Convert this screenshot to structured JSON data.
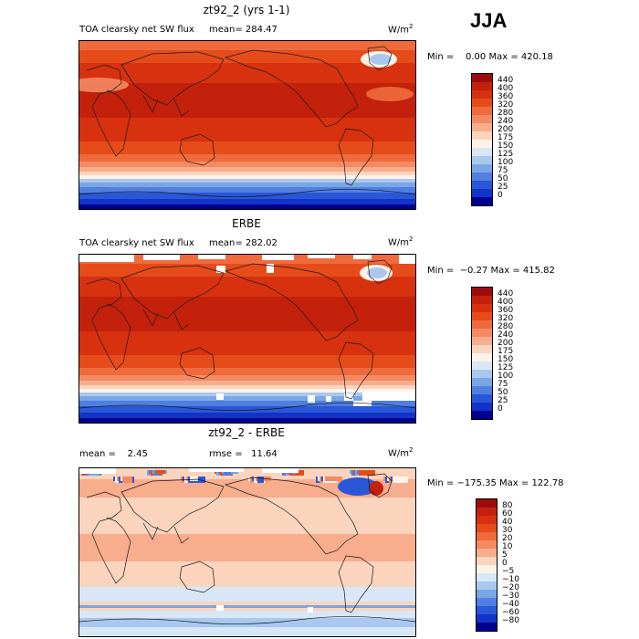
{
  "season": "JJA",
  "panels": [
    {
      "id": "model",
      "title": "zt92_2 (yrs 1-1)",
      "left_label": "TOA clearsky net SW flux",
      "stat_text": "mean= 284.47",
      "units_base": "W/m",
      "units_exp": "2",
      "minmax": "Min =    0.00 Max = 420.18",
      "colorbar": {
        "labels": [
          "440",
          "400",
          "360",
          "320",
          "280",
          "240",
          "200",
          "175",
          "150",
          "125",
          "100",
          "75",
          "50",
          "25",
          "0"
        ],
        "colors": [
          "#9b0d0d",
          "#c3210c",
          "#d8310f",
          "#e64b1a",
          "#ef6a3c",
          "#f48a62",
          "#f8ad8d",
          "#fbd4be",
          "#fdf2e8",
          "#d8e7f6",
          "#aac8ee",
          "#7aa6e6",
          "#4f7fe0",
          "#2a57d8",
          "#1233c8",
          "#000090"
        ]
      }
    },
    {
      "id": "obs",
      "title": "ERBE",
      "left_label": "TOA clearsky net SW flux",
      "stat_text": "mean= 282.02",
      "units_base": "W/m",
      "units_exp": "2",
      "minmax": "Min =  −0.27 Max = 415.82",
      "colorbar": {
        "labels": [
          "440",
          "400",
          "360",
          "320",
          "280",
          "240",
          "200",
          "175",
          "150",
          "125",
          "100",
          "75",
          "50",
          "25",
          "0"
        ],
        "colors": [
          "#9b0d0d",
          "#c3210c",
          "#d8310f",
          "#e64b1a",
          "#ef6a3c",
          "#f48a62",
          "#f8ad8d",
          "#fbd4be",
          "#fdf2e8",
          "#d8e7f6",
          "#aac8ee",
          "#7aa6e6",
          "#4f7fe0",
          "#2a57d8",
          "#1233c8",
          "#000090"
        ]
      }
    },
    {
      "id": "diff",
      "title": "zt92_2 - ERBE",
      "left_label": "mean =    2.45",
      "stat_text": "rmse =   11.64",
      "units_base": "W/m",
      "units_exp": "2",
      "minmax": "Min = −175.35 Max = 122.78",
      "colorbar": {
        "labels": [
          "80",
          "60",
          "40",
          "30",
          "20",
          "10",
          "5",
          "0",
          "−5",
          "−10",
          "−20",
          "−30",
          "−40",
          "−60",
          "−80"
        ],
        "colors": [
          "#9b0d0d",
          "#c3210c",
          "#d8310f",
          "#e64b1a",
          "#ef6a3c",
          "#f48a62",
          "#f8ad8d",
          "#fbd4be",
          "#fdf2e8",
          "#d8e7f6",
          "#aac8ee",
          "#7aa6e6",
          "#4f7fe0",
          "#2a57d8",
          "#1233c8",
          "#000090"
        ]
      }
    }
  ]
}
